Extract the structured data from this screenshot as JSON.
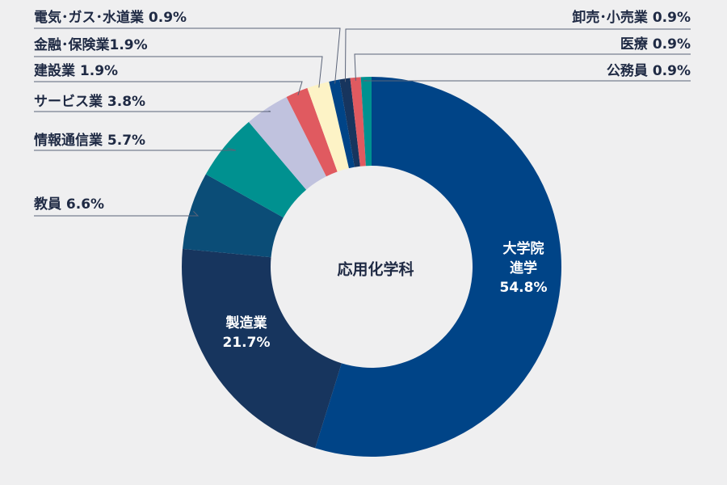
{
  "chart_data": {
    "type": "pie",
    "center_label": "応用化学科",
    "slices": [
      {
        "name": "大学院進学",
        "label_lines": [
          "大学院",
          "進学"
        ],
        "value_text": "54.8%",
        "value": 54.8,
        "color": "#004487"
      },
      {
        "name": "製造業",
        "label_lines": [
          "製造業"
        ],
        "value_text": "21.7%",
        "value": 21.7,
        "color": "#17355e"
      },
      {
        "name": "教員",
        "label_lines": [
          "教員 6.6%"
        ],
        "value_text": "",
        "value": 6.6,
        "color": "#0b4d77"
      },
      {
        "name": "情報通信業",
        "label_lines": [
          "情報通信業 5.7%"
        ],
        "value_text": "",
        "value": 5.7,
        "color": "#009190"
      },
      {
        "name": "サービス業",
        "label_lines": [
          "サービス業 3.8%"
        ],
        "value_text": "",
        "value": 3.8,
        "color": "#c0c2de"
      },
      {
        "name": "建設業",
        "label_lines": [
          "建設業 1.9%"
        ],
        "value_text": "",
        "value": 1.9,
        "color": "#e05a60"
      },
      {
        "name": "金融・保険業",
        "label_lines": [
          "金融･保険業1.9%"
        ],
        "value_text": "",
        "value": 1.9,
        "color": "#fdf3c6"
      },
      {
        "name": "電気・ガス・水道業",
        "label_lines": [
          "電気･ガス･水道業 0.9%"
        ],
        "value_text": "",
        "value": 0.9,
        "color": "#004487"
      },
      {
        "name": "卸売・小売業",
        "label_lines": [
          "卸売･小売業 0.9%"
        ],
        "value_text": "",
        "value": 0.9,
        "color": "#17355e"
      },
      {
        "name": "医療",
        "label_lines": [
          "医療 0.9%"
        ],
        "value_text": "",
        "value": 0.9,
        "color": "#e05a60"
      },
      {
        "name": "公務員",
        "label_lines": [
          "公務員 0.9%"
        ],
        "value_text": "",
        "value": 0.9,
        "color": "#009190"
      }
    ]
  }
}
